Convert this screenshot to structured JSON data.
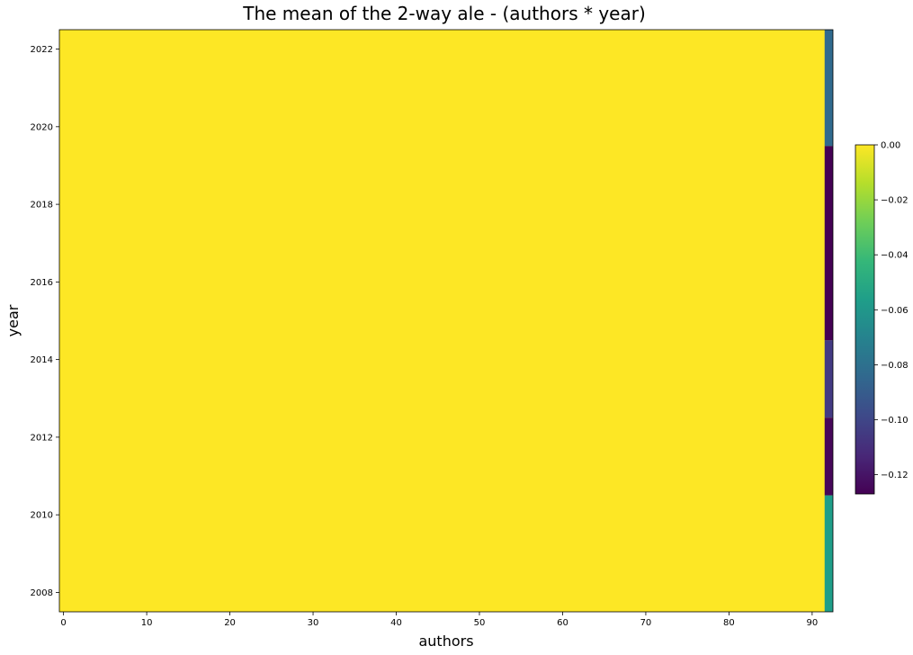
{
  "chart_data": {
    "type": "heatmap",
    "title": "The mean of the 2-way ale - (authors * year)",
    "xlabel": "authors",
    "ylabel": "year",
    "xlim": [
      -0.5,
      92.5
    ],
    "ylim": [
      2007.5,
      2022.5
    ],
    "x_ticks": [
      0,
      10,
      20,
      30,
      40,
      50,
      60,
      70,
      80,
      90
    ],
    "y_ticks": [
      2008,
      2010,
      2012,
      2014,
      2016,
      2018,
      2020,
      2022
    ],
    "background_value": 0.0,
    "background_color": "#fde725",
    "column_strip": {
      "x_range": [
        91.5,
        92.5
      ],
      "segments": [
        {
          "y_range": [
            2019.5,
            2022.5
          ],
          "value": -0.082,
          "color": "#306a8e"
        },
        {
          "y_range": [
            2014.5,
            2019.5
          ],
          "value": -0.127,
          "color": "#440154"
        },
        {
          "y_range": [
            2012.5,
            2014.5
          ],
          "value": -0.108,
          "color": "#433a83"
        },
        {
          "y_range": [
            2010.5,
            2012.5
          ],
          "value": -0.124,
          "color": "#46075a"
        },
        {
          "y_range": [
            2007.5,
            2010.5
          ],
          "value": -0.045,
          "color": "#1f9e89"
        }
      ]
    },
    "colorbar": {
      "min": -0.127,
      "max": 0.0,
      "ticks": [
        0.0,
        -0.02,
        -0.04,
        -0.06,
        -0.08,
        -0.1,
        -0.12
      ],
      "tick_labels": [
        "0.00",
        "−0.02",
        "−0.04",
        "−0.06",
        "−0.08",
        "−0.10",
        "−0.12"
      ],
      "colormap": "viridis",
      "stops": [
        "#440154",
        "#482878",
        "#3e4989",
        "#31688e",
        "#26828e",
        "#1f9e89",
        "#35b779",
        "#6ece58",
        "#b5de2b",
        "#fde725"
      ]
    },
    "grid": false,
    "legend": "none"
  }
}
